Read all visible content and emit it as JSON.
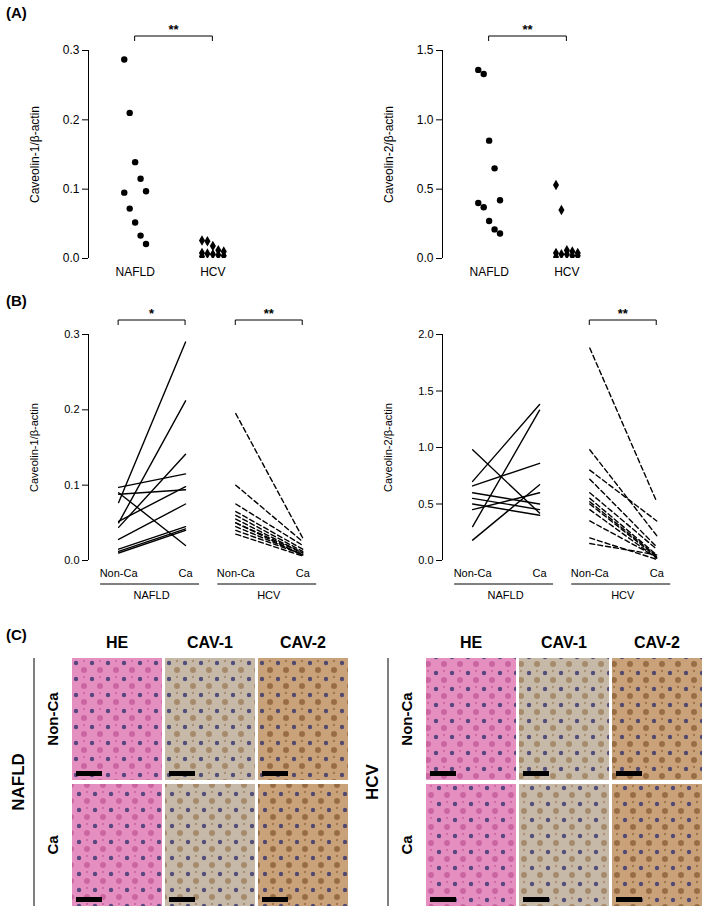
{
  "chart_data": [
    {
      "panel": "(A)",
      "type": "scatter",
      "y_label": "Caveolin-1/β-actin",
      "ylim": [
        0,
        0.3
      ],
      "yticks": [
        {
          "value": 0,
          "label": "0.0"
        },
        0.1,
        0.2,
        0.3
      ],
      "significance": "**",
      "series": [
        {
          "name": "NAFLD",
          "marker": "circle",
          "color": "#000000",
          "values": [
            0.287,
            0.21,
            0.139,
            0.115,
            0.097,
            0.095,
            0.072,
            0.052,
            0.033,
            0.021
          ]
        },
        {
          "name": "HCV",
          "marker": "diamond",
          "color": "#000000",
          "values": [
            0.026,
            0.025,
            0.018,
            0.012,
            0.01,
            0.008,
            0.007,
            0.006,
            0.005,
            0.004,
            0.003
          ]
        }
      ]
    },
    {
      "panel": "(A)",
      "type": "scatter",
      "y_label": "Caveolin-2/β-actin",
      "ylim": [
        0,
        1.5
      ],
      "yticks": [
        {
          "value": 0,
          "label": "0.0"
        },
        0.5,
        {
          "value": 1,
          "label": "1.0"
        },
        1.5
      ],
      "significance": "**",
      "series": [
        {
          "name": "NAFLD",
          "marker": "circle",
          "color": "#000000",
          "values": [
            1.36,
            1.33,
            0.85,
            0.65,
            0.42,
            0.4,
            0.37,
            0.27,
            0.21,
            0.18
          ]
        },
        {
          "name": "HCV",
          "marker": "diamond",
          "color": "#000000",
          "values": [
            0.53,
            0.35,
            0.06,
            0.05,
            0.04,
            0.04,
            0.03,
            0.03,
            0.02,
            0.02,
            0.01
          ]
        }
      ]
    },
    {
      "panel": "(B)",
      "type": "line",
      "y_label": "Caveolin-1/β-actin",
      "categories": [
        "Non-Ca",
        "Ca"
      ],
      "ylim": [
        0,
        0.3
      ],
      "yticks": [
        {
          "value": 0,
          "label": "0.0"
        },
        0.1,
        0.2,
        0.3
      ],
      "series": [
        {
          "name": "NAFLD",
          "line_style": "solid",
          "color": "#000000",
          "significance": "*",
          "values": [
            [
              0.077,
              0.29
            ],
            [
              0.05,
              0.212
            ],
            [
              0.044,
              0.141
            ],
            [
              0.097,
              0.115
            ],
            [
              0.088,
              0.094
            ],
            [
              0.052,
              0.098
            ],
            [
              0.028,
              0.075
            ],
            [
              0.015,
              0.045
            ],
            [
              0.012,
              0.042
            ],
            [
              0.01,
              0.04
            ],
            [
              0.09,
              0.02
            ]
          ]
        },
        {
          "name": "HCV",
          "line_style": "dashed",
          "color": "#000000",
          "significance": "**",
          "values": [
            [
              0.195,
              0.03
            ],
            [
              0.1,
              0.025
            ],
            [
              0.075,
              0.02
            ],
            [
              0.065,
              0.015
            ],
            [
              0.06,
              0.012
            ],
            [
              0.055,
              0.01
            ],
            [
              0.05,
              0.01
            ],
            [
              0.045,
              0.008
            ],
            [
              0.04,
              0.008
            ],
            [
              0.05,
              0.007
            ],
            [
              0.035,
              0.006
            ]
          ]
        }
      ]
    },
    {
      "panel": "(B)",
      "type": "line",
      "y_label": "Caveolin-2/β-actin",
      "categories": [
        "Non-Ca",
        "Ca"
      ],
      "ylim": [
        0,
        2
      ],
      "yticks": [
        {
          "value": 0,
          "label": "0.0"
        },
        0.5,
        {
          "value": 1,
          "label": "1.0"
        },
        1.5,
        {
          "value": 2,
          "label": "2.0"
        }
      ],
      "series": [
        {
          "name": "NAFLD",
          "line_style": "solid",
          "color": "#000000",
          "values": [
            [
              0.98,
              0.42
            ],
            [
              0.7,
              1.38
            ],
            [
              0.66,
              0.86
            ],
            [
              0.6,
              0.5
            ],
            [
              0.55,
              0.45
            ],
            [
              0.5,
              0.4
            ],
            [
              0.45,
              0.6
            ],
            [
              0.3,
              1.33
            ],
            [
              0.18,
              0.67
            ]
          ]
        },
        {
          "name": "HCV",
          "line_style": "dashed",
          "color": "#000000",
          "significance": "**",
          "values": [
            [
              1.88,
              0.52
            ],
            [
              0.98,
              0.22
            ],
            [
              0.8,
              0.35
            ],
            [
              0.72,
              0.12
            ],
            [
              0.6,
              0.1
            ],
            [
              0.55,
              0.05
            ],
            [
              0.52,
              0.04
            ],
            [
              0.5,
              0.03
            ],
            [
              0.45,
              0.02
            ],
            [
              0.35,
              0.03
            ],
            [
              0.2,
              0.01
            ],
            [
              0.15,
              0.05
            ]
          ]
        }
      ]
    }
  ],
  "histology": {
    "panel": "(C)",
    "blocks": [
      {
        "group": "NAFLD",
        "columns": [
          "HE",
          "CAV-1",
          "CAV-2"
        ],
        "rows": [
          "Non-Ca",
          "Ca"
        ]
      },
      {
        "group": "HCV",
        "columns": [
          "HE",
          "CAV-1",
          "CAV-2"
        ],
        "rows": [
          "Non-Ca",
          "Ca"
        ]
      }
    ]
  }
}
